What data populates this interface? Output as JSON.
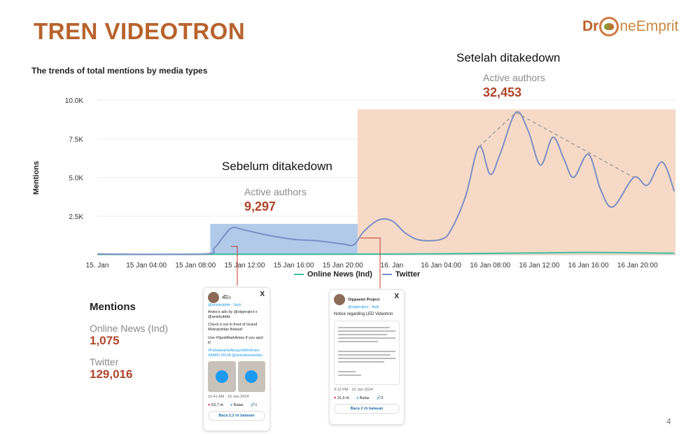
{
  "title": "TREN VIDEOTRON",
  "logo": {
    "pre": "Dr",
    "post": "neEmprit"
  },
  "chart_data": {
    "type": "line",
    "title": "The trends of total mentions by media types",
    "ylabel": "Mentions",
    "xlabel": "",
    "ylim": [
      0,
      10000
    ],
    "yticks": [
      "2.5K",
      "5.0K",
      "7.5K",
      "10.0K"
    ],
    "ytick_values": [
      2500,
      5000,
      7500,
      10000
    ],
    "xticks": [
      "15. Jan",
      "15 Jan 04:00",
      "15 Jan 08:00",
      "15 Jan 12:00",
      "15 Jan 16:00",
      "15 Jan 20:00",
      "16. Jan",
      "16 Jan 04:00",
      "16 Jan 08:00",
      "16 Jan 12:00",
      "16 Jan 16:00",
      "16 Jan 20:00"
    ],
    "xtick_hours": [
      0,
      4,
      8,
      12,
      16,
      20,
      24,
      28,
      32,
      36,
      40,
      44
    ],
    "x_unit": "hours since 15 Jan 00:00",
    "legend": "bottom",
    "series": [
      {
        "name": "Online News (Ind)",
        "color": "#3fbf9f",
        "points": [
          [
            0,
            20
          ],
          [
            12,
            40
          ],
          [
            24,
            50
          ],
          [
            36,
            120
          ],
          [
            40,
            150
          ],
          [
            47,
            100
          ]
        ]
      },
      {
        "name": "Twitter",
        "color": "#7b8fc4",
        "points": [
          [
            0,
            50
          ],
          [
            8.6,
            50
          ],
          [
            9.5,
            400
          ],
          [
            10.3,
            1200
          ],
          [
            11,
            1750
          ],
          [
            12,
            1600
          ],
          [
            14,
            1250
          ],
          [
            16,
            1000
          ],
          [
            18,
            900
          ],
          [
            20,
            700
          ],
          [
            20.9,
            650
          ],
          [
            21.7,
            1500
          ],
          [
            22.9,
            2250
          ],
          [
            24,
            2200
          ],
          [
            25.1,
            1400
          ],
          [
            26.3,
            950
          ],
          [
            28,
            1000
          ],
          [
            28.8,
            1600
          ],
          [
            30,
            3800
          ],
          [
            31.1,
            7000
          ],
          [
            32,
            5200
          ],
          [
            32.8,
            6500
          ],
          [
            34.1,
            9200
          ],
          [
            35.1,
            8000
          ],
          [
            36.1,
            5800
          ],
          [
            37.1,
            7600
          ],
          [
            38,
            6200
          ],
          [
            38.8,
            5000
          ],
          [
            40,
            6500
          ],
          [
            41,
            4200
          ],
          [
            42,
            3100
          ],
          [
            43.7,
            5000
          ],
          [
            44.8,
            4500
          ],
          [
            46,
            6000
          ],
          [
            47,
            4100
          ]
        ]
      }
    ],
    "trend_line": [
      [
        31.1,
        7000
      ],
      [
        34.1,
        9200
      ],
      [
        43.7,
        5000
      ]
    ],
    "regions": [
      {
        "label": "Sebelum ditakedown",
        "from": 9.2,
        "to": 21.2,
        "ymax": 2000,
        "color": "#a9c4e8",
        "authors_label": "Active authors",
        "authors": "9,297"
      },
      {
        "label": "Setelah ditakedown",
        "from": 21.2,
        "to": 47.1,
        "ymax": 9400,
        "color": "#f5d2bd",
        "authors_label": "Active authors",
        "authors": "32,453"
      }
    ]
  },
  "stats": {
    "heading": "Mentions",
    "items": [
      {
        "label": "Online News (Ind)",
        "value": "1,075"
      },
      {
        "label": "Twitter",
        "value": "129,016"
      }
    ]
  },
  "tweet1": {
    "name": "ໝີມ້ວ",
    "handle": "@anisbubble",
    "follow": "Ikuti",
    "p1": "Anies's ads by @olpproject x @anisbubble",
    "p2": "Check it out in front of Grand Metropolitan Bekasi!",
    "p3": "Use #SpotAbahAnies if you spot it!",
    "p4": "#PahlawanIsAlwaysWithAnies #AMIN #DiJA @aniesbaswedan",
    "time": "10:41 AM · 15 Jan 2024",
    "likes": "63,7 rb",
    "reply": "Balas",
    "shares": "1",
    "read": "Baca 2,2 rb balasan"
  },
  "tweet2": {
    "name": "Oippaemi Project",
    "handle": "@oipproject",
    "follow": "Ikuti",
    "text": "Notice regarding LED Videotron",
    "time": "9:12 PM · 15 Jan 2024",
    "likes": "31,6 rb",
    "reply": "Balas",
    "shares": "3",
    "read": "Baca 2 rb balasan"
  },
  "page_number": "4"
}
